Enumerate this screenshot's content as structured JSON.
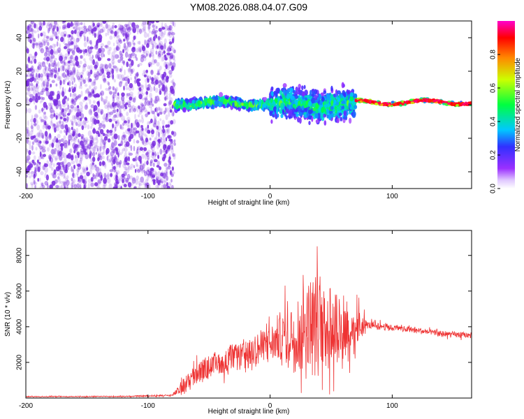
{
  "title": "YM08.2026.088.04.07.G09",
  "colors": {
    "frame": "#000000",
    "snr_line": "#ee3333",
    "noise_blob": "#7a2de0",
    "background": "#ffffff"
  },
  "chart_data": [
    {
      "type": "heatmap",
      "title": "YM08.2026.088.04.07.G09",
      "xlabel": "Height of straight line (km)",
      "ylabel": "Frequency (Hz)",
      "xlim": [
        -200,
        165
      ],
      "ylim": [
        -50,
        50
      ],
      "xticks": [
        -200,
        -100,
        0,
        100
      ],
      "yticks": [
        -40,
        -20,
        0,
        20,
        40
      ],
      "colorbar": {
        "label": "Normalized spectral amplitude",
        "range": [
          0.0,
          1.0
        ],
        "ticks": [
          0.0,
          0.2,
          0.4,
          0.6,
          0.8
        ],
        "colormap": "rainbow (violet-blue-cyan-green-yellow-red-magenta)"
      },
      "regions": [
        {
          "name": "noise",
          "x_range": [
            -200,
            -78
          ],
          "freq_range": [
            -50,
            50
          ],
          "amplitude": 0.1
        },
        {
          "name": "signal-onset",
          "x_range": [
            -78,
            0
          ],
          "center_freq": 1,
          "spread_hz": 4,
          "amplitude": 0.45
        },
        {
          "name": "scintillation",
          "x_range": [
            0,
            70
          ],
          "center_freq": 0,
          "spread_hz": 12,
          "amplitude": 0.4
        },
        {
          "name": "clear-tone",
          "x_range": [
            70,
            165
          ],
          "center_freq": 1.5,
          "spread_hz": 1.5,
          "amplitude": 0.9
        }
      ]
    },
    {
      "type": "line",
      "xlabel": "Height of straight line (km)",
      "ylabel": "SNR (10 * v/v)",
      "xlim": [
        -200,
        165
      ],
      "ylim": [
        0,
        9400
      ],
      "xticks": [
        -200,
        -100,
        0,
        100
      ],
      "yticks": [
        2000,
        4000,
        6000,
        8000
      ],
      "series": [
        {
          "name": "SNR",
          "color": "#ee3333",
          "envelope": {
            "x": [
              -200,
              -120,
              -80,
              -70,
              -60,
              -40,
              -20,
              0,
              10,
              20,
              30,
              40,
              50,
              60,
              70,
              80,
              90,
              100,
              120,
              140,
              165
            ],
            "mean": [
              80,
              90,
              150,
              700,
              1400,
              2000,
              2500,
              3000,
              3400,
              3800,
              4000,
              4200,
              4200,
              4000,
              3900,
              4100,
              4050,
              3950,
              3800,
              3600,
              3500
            ],
            "spread": [
              50,
              50,
              100,
              900,
              1100,
              1300,
              1500,
              1800,
              2800,
              4000,
              5000,
              5000,
              4500,
              4000,
              2500,
              400,
              400,
              300,
              300,
              300,
              300
            ]
          }
        }
      ]
    }
  ]
}
